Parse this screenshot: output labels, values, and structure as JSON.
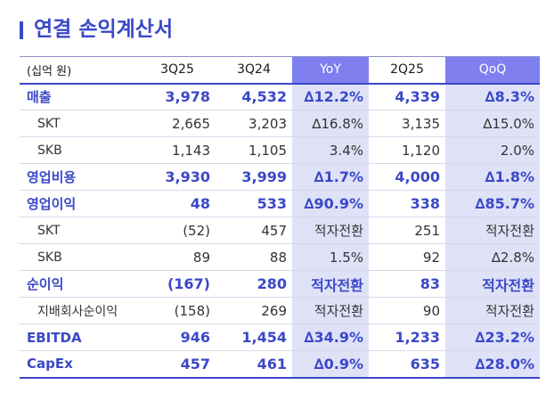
{
  "title": "연결 손익계산서",
  "table": {
    "headers": [
      "(십억 원)",
      "3Q25",
      "3Q24",
      "YoY",
      "2Q25",
      "QoQ"
    ],
    "rows": [
      {
        "label": "매출",
        "values": [
          "3,978",
          "4,532",
          "∆12.2%",
          "4,339",
          "∆8.3%"
        ],
        "kind": "main"
      },
      {
        "label": "SKT",
        "values": [
          "2,665",
          "3,203",
          "∆16.8%",
          "3,135",
          "∆15.0%"
        ],
        "kind": "sub"
      },
      {
        "label": "SKB",
        "values": [
          "1,143",
          "1,105",
          "3.4%",
          "1,120",
          "2.0%"
        ],
        "kind": "sub"
      },
      {
        "label": "영업비용",
        "values": [
          "3,930",
          "3,999",
          "∆1.7%",
          "4,000",
          "∆1.8%"
        ],
        "kind": "main"
      },
      {
        "label": "영업이익",
        "values": [
          "48",
          "533",
          "∆90.9%",
          "338",
          "∆85.7%"
        ],
        "kind": "main"
      },
      {
        "label": "SKT",
        "values": [
          "(52)",
          "457",
          "적자전환",
          "251",
          "적자전환"
        ],
        "kind": "sub"
      },
      {
        "label": "SKB",
        "values": [
          "89",
          "88",
          "1.5%",
          "92",
          "∆2.8%"
        ],
        "kind": "sub"
      },
      {
        "label": "순이익",
        "values": [
          "(167)",
          "280",
          "적자전환",
          "83",
          "적자전환"
        ],
        "kind": "main"
      },
      {
        "label": "지배회사순이익",
        "values": [
          "(158)",
          "269",
          "적자전환",
          "90",
          "적자전환"
        ],
        "kind": "sub"
      },
      {
        "label": "EBITDA",
        "values": [
          "946",
          "1,454",
          "∆34.9%",
          "1,233",
          "∆23.2%"
        ],
        "kind": "main"
      },
      {
        "label": "CapEx",
        "values": [
          "457",
          "461",
          "∆0.9%",
          "635",
          "∆28.0%"
        ],
        "kind": "main"
      }
    ]
  },
  "colors": {
    "accent": "#3a48c8",
    "header_highlight": "#7f7ff0",
    "column_highlight": "#dfe2f7"
  }
}
